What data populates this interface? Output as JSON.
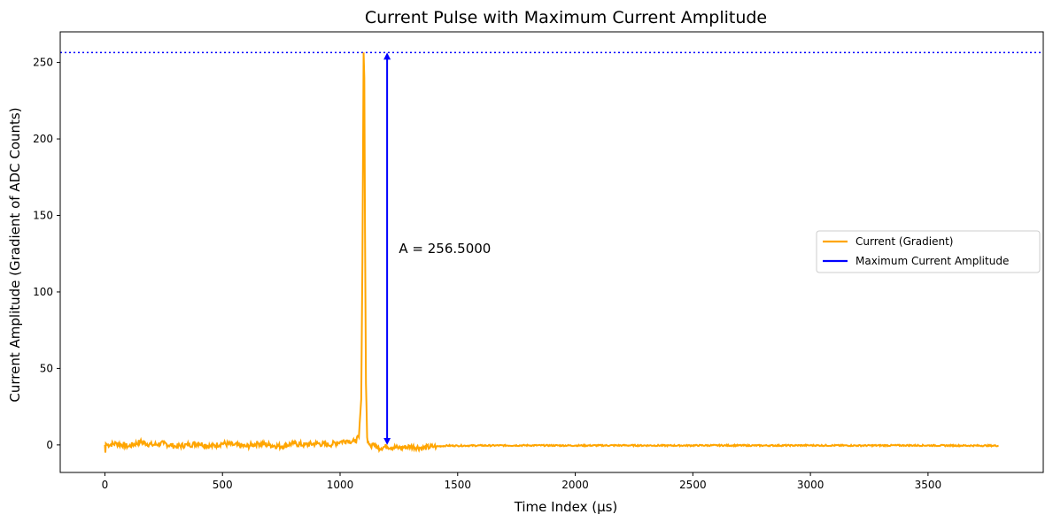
{
  "chart_data": {
    "type": "line",
    "title": "Current Pulse with Maximum Current Amplitude",
    "xlabel": "Time Index (µs)",
    "ylabel": "Current Amplitude (Gradient of ADC Counts)",
    "xlim": [
      -190,
      3990
    ],
    "ylim": [
      -18,
      270
    ],
    "xticks": [
      0,
      500,
      1000,
      1500,
      2000,
      2500,
      3000,
      3500
    ],
    "yticks": [
      0,
      50,
      100,
      150,
      200,
      250
    ],
    "grid": false,
    "legend_position": "center-right",
    "series": [
      {
        "name": "Current (Gradient)",
        "color": "#ffa500",
        "x": [
          0,
          2,
          4,
          10,
          50,
          100,
          150,
          200,
          250,
          300,
          350,
          400,
          450,
          500,
          550,
          600,
          650,
          700,
          750,
          800,
          850,
          900,
          950,
          1000,
          1030,
          1060,
          1080,
          1090,
          1095,
          1100,
          1103,
          1106,
          1110,
          1115,
          1120,
          1130,
          1140,
          1160,
          1200,
          1250,
          1300,
          1350,
          1400,
          1410,
          1450,
          1500,
          1600,
          1800,
          2000,
          2200,
          2400,
          2600,
          2800,
          3000,
          3200,
          3400,
          3600,
          3800
        ],
        "y": [
          0,
          -5,
          1,
          0,
          1,
          -1,
          2,
          0,
          1,
          -1,
          0,
          1,
          -1,
          1,
          0,
          -1,
          1,
          0,
          -1,
          1,
          0,
          1,
          0,
          2,
          3,
          2,
          5,
          30,
          120,
          256.5,
          240,
          140,
          40,
          5,
          2,
          -1,
          1,
          -2,
          -1,
          -2,
          -1,
          -2,
          -1,
          -1,
          -0.5,
          -0.5,
          -0.4,
          -0.3,
          -0.4,
          -0.3,
          -0.4,
          -0.3,
          -0.4,
          -0.3,
          -0.4,
          -0.3,
          -0.4,
          -0.5
        ]
      },
      {
        "name": "Maximum Current Amplitude",
        "color": "#0000ff",
        "x": [
          1200,
          1200
        ],
        "y": [
          0,
          256.5
        ]
      }
    ],
    "reference_lines": [
      {
        "orientation": "horizontal",
        "y": 256.5,
        "color": "#0000ff",
        "style": "dotted"
      }
    ],
    "annotations": [
      {
        "text": "A = 256.5000",
        "x": 1250,
        "y": 128.25
      }
    ]
  }
}
